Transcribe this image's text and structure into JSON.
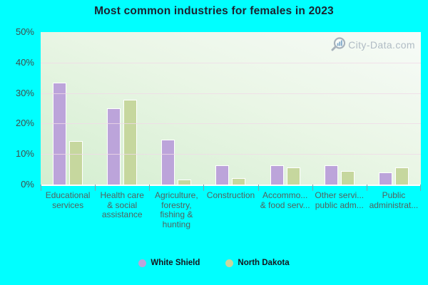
{
  "title": "Most common industries for females in 2023",
  "watermark": {
    "text": "City-Data.com",
    "icon": "magnifier-bars-icon"
  },
  "colors": {
    "page_background": "#00ffff",
    "bar_white_shield": "#bca4da",
    "bar_north_dakota": "#c6d79e",
    "bar_border": "#ffffff",
    "gridline": "#f0dae7",
    "plot_gradient_light": "#f7fbf8",
    "plot_gradient_green": "#d4eed0",
    "axis_tick_mark": "#7ba3ab",
    "y_label_text": "#414c4c",
    "category_label_text": "#52625f",
    "title_text": "#1b2230",
    "legend_text": "#15161d",
    "watermark_text": "#a9b5bf"
  },
  "y_axis": {
    "min": 0,
    "max": 50,
    "step": 10,
    "unit": "%",
    "tick_labels": [
      "0%",
      "10%",
      "20%",
      "30%",
      "40%",
      "50%"
    ]
  },
  "legend": [
    {
      "label": "White Shield",
      "color": "#bca4da"
    },
    {
      "label": "North Dakota",
      "color": "#c6d79e"
    }
  ],
  "chart_data": {
    "type": "bar",
    "title": "Most common industries for females in 2023",
    "categories": [
      "Educational services",
      "Health care & social assistance",
      "Agriculture, forestry, fishing & hunting",
      "Construction",
      "Accommo... & food serv...",
      "Other servi... public adm...",
      "Public administrat..."
    ],
    "categories_display_lines": [
      [
        "Educational",
        "services"
      ],
      [
        "Health care",
        "& social",
        "assistance"
      ],
      [
        "Agriculture,",
        "forestry,",
        "fishing &",
        "hunting"
      ],
      [
        "Construction"
      ],
      [
        "Accommo...",
        "& food serv..."
      ],
      [
        "Other servi...",
        "public adm..."
      ],
      [
        "Public",
        "administrat..."
      ]
    ],
    "series": [
      {
        "name": "White Shield",
        "values": [
          33.5,
          25.0,
          14.8,
          6.2,
          6.4,
          6.3,
          4.0
        ]
      },
      {
        "name": "North Dakota",
        "values": [
          14.3,
          27.8,
          1.7,
          2.0,
          5.7,
          4.5,
          5.6
        ]
      }
    ],
    "xlabel": "",
    "ylabel": "",
    "ylim": [
      0,
      50
    ],
    "grid": true,
    "gridlines": "horizontal",
    "legend_position": "bottom"
  }
}
